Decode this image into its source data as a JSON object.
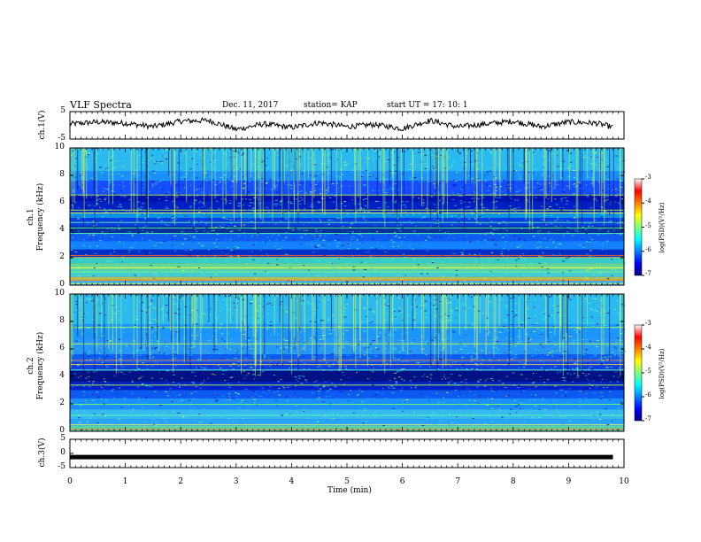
{
  "header": {
    "title": "VLF Spectra",
    "date": "Dec. 11, 2017",
    "station": "station= KAP",
    "start_ut": "start  UT =   17: 10: 1"
  },
  "colors": {
    "trace": "#000000",
    "colormap": [
      "#00007f",
      "#0000ff",
      "#007fff",
      "#00ffff",
      "#7fff7f",
      "#ffff00",
      "#ff7f00",
      "#ff0000",
      "#ffffff"
    ]
  },
  "chart_data": [
    {
      "type": "line",
      "ylabel": "ch.1(V)",
      "ylim": [
        -5,
        5
      ],
      "yticks": [
        "5",
        "-5"
      ],
      "xlim": [
        0,
        10
      ],
      "description_series": "noisy voltage trace near 0 V",
      "x": [
        0,
        0.5,
        1,
        1.5,
        2,
        2.5,
        3,
        3.5,
        4,
        4.5,
        5,
        5.5,
        6,
        6.5,
        7,
        7.5,
        8,
        8.5,
        9,
        9.5,
        9.8
      ],
      "y": [
        0.5,
        1.2,
        0.8,
        -0.5,
        1.5,
        1.8,
        -1.5,
        0.5,
        -0.8,
        1.0,
        -0.5,
        0.3,
        -1.2,
        1.8,
        -0.6,
        0.5,
        1.5,
        -0.5,
        1.2,
        0.8,
        -0.7
      ]
    },
    {
      "type": "heatmap",
      "ylabel_top": "ch.1",
      "ylabel": "Frequency  (kHz)",
      "ylim": [
        0,
        10
      ],
      "yticks": [
        "0",
        "2",
        "4",
        "6",
        "8",
        "10"
      ],
      "xlim": [
        0,
        10
      ],
      "colorbar": {
        "label": "log(PSD)(V²/Hz)",
        "range": [
          -7,
          -3
        ],
        "ticks": [
          "-3",
          "-4",
          "-5",
          "-6",
          "-7"
        ]
      }
    },
    {
      "type": "heatmap",
      "ylabel_top": "ch.2",
      "ylabel": "Frequency  (kHz)",
      "ylim": [
        0,
        10
      ],
      "yticks": [
        "0",
        "2",
        "4",
        "6",
        "8",
        "10"
      ],
      "xlim": [
        0,
        10
      ],
      "colorbar": {
        "label": "log(PSD)(V²/Hz)",
        "range": [
          -7,
          -3
        ],
        "ticks": [
          "-3",
          "-4",
          "-5",
          "-6",
          "-7"
        ]
      }
    },
    {
      "type": "line",
      "ylabel": "ch.3(V)",
      "ylim": [
        -5,
        5
      ],
      "yticks": [
        "5",
        "0",
        "-5"
      ],
      "xlim": [
        0,
        10
      ],
      "x": [
        0,
        9.8
      ],
      "y": [
        -1.3,
        -1.3
      ],
      "xlabel": "Time  (min)",
      "xticks": [
        "0",
        "1",
        "2",
        "3",
        "4",
        "5",
        "6",
        "7",
        "8",
        "9",
        "10"
      ]
    }
  ]
}
